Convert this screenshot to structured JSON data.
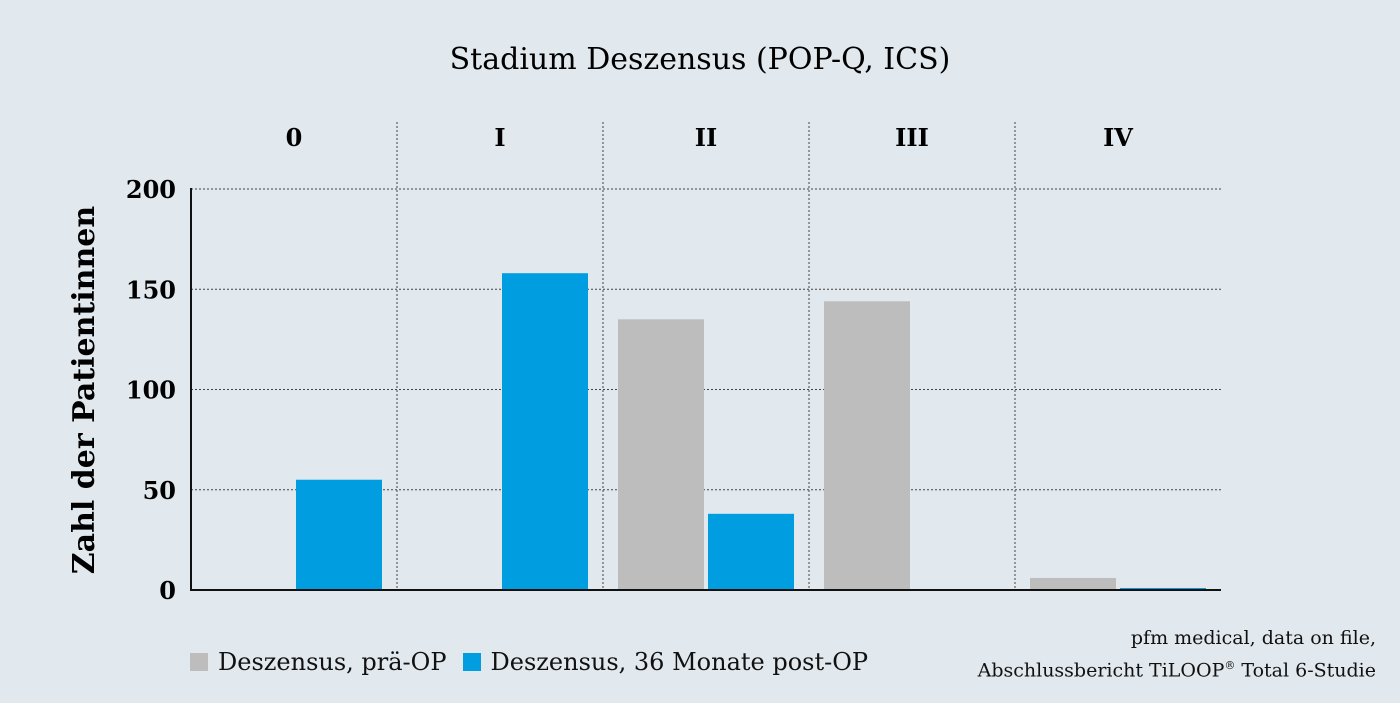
{
  "chart_data": {
    "type": "bar",
    "title": "Stadium Deszensus (POP-Q, ICS)",
    "ylabel": "Zahl der Patientinnen",
    "xlabel": "",
    "categories": [
      "0",
      "I",
      "II",
      "III",
      "IV"
    ],
    "series": [
      {
        "name": "Deszensus, prä-OP",
        "values": [
          0,
          0,
          135,
          144,
          6
        ],
        "color": "#bdbdbd"
      },
      {
        "name": "Deszensus, 36 Monate post-OP",
        "values": [
          55,
          158,
          38,
          0,
          1
        ],
        "color": "#009ee0"
      }
    ],
    "ylim": [
      0,
      200
    ],
    "yticks": [
      0,
      50,
      100,
      150,
      200
    ],
    "grid": true,
    "legend_position": "bottom-left"
  },
  "source": {
    "line1": "pfm medical, data on file,",
    "line2_prefix": "Abschlussbericht TiLOOP",
    "line2_sup": "®",
    "line2_suffix": " Total 6-Studie"
  }
}
